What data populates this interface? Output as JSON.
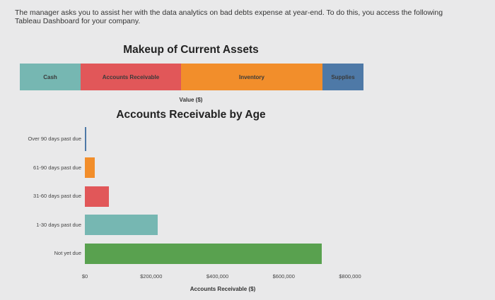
{
  "intro_text": "The manager asks you to assist her with the data analytics on bad debts expense at year-end. To do this, you access the following Tableau Dashboard for your company.",
  "chart_data": [
    {
      "type": "bar",
      "orientation": "horizontal-stacked",
      "title": "Makeup of Current Assets",
      "xlabel": "Value ($)",
      "series": [
        {
          "name": "Cash",
          "value": 86,
          "color": "#76b7b2"
        },
        {
          "name": "Accounts Receivable",
          "value": 142,
          "color": "#e15759"
        },
        {
          "name": "Inventory",
          "value": 200,
          "color": "#f28e2b"
        },
        {
          "name": "Supplies",
          "value": 58,
          "color": "#4e79a7"
        }
      ]
    },
    {
      "type": "bar",
      "orientation": "horizontal",
      "title": "Accounts Receivable by Age",
      "xlabel": "Accounts Receivable ($)",
      "categories": [
        "Over 90 days past due",
        "61-90 days past due",
        "31-60 days past due",
        "1-30 days past due",
        "Not yet due"
      ],
      "values": [
        5000,
        30000,
        72000,
        220000,
        715000
      ],
      "colors": [
        "#4e79a7",
        "#f28e2b",
        "#e15759",
        "#76b7b2",
        "#59a14f"
      ],
      "xlim": [
        0,
        800000
      ],
      "ticks": [
        "$0",
        "$200,000",
        "$400,000",
        "$600,000",
        "$800,000"
      ]
    }
  ]
}
